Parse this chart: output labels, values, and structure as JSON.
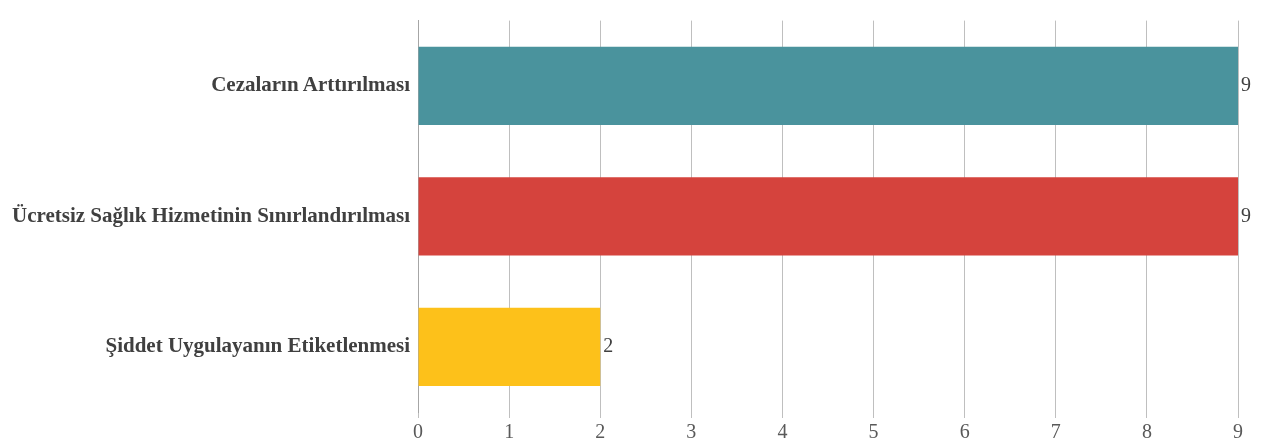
{
  "chart_data": {
    "type": "bar",
    "orientation": "horizontal",
    "categories": [
      "Cezaların Arttırılması",
      "Ücretsiz Sağlık Hizmetinin Sınırlandırılması",
      "Şiddet Uygulayanın Etiketlenmesi"
    ],
    "values": [
      9,
      9,
      2
    ],
    "colors": [
      "#4a939d",
      "#d5433d",
      "#fdc11a"
    ],
    "xlim": [
      0,
      9
    ],
    "xticks": [
      0,
      1,
      2,
      3,
      4,
      5,
      6,
      7,
      8,
      9
    ],
    "grid": "x",
    "legend": false,
    "data_labels": true
  }
}
